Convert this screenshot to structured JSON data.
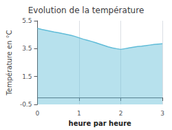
{
  "chart_data": {
    "type": "area",
    "title": "Evolution de la température",
    "xlabel": "heure par heure",
    "ylabel": "Température en °C",
    "x": [
      0.0,
      0.1,
      0.2,
      0.3,
      0.4,
      0.5,
      0.6,
      0.7,
      0.8,
      0.9,
      1.0,
      1.1,
      1.2,
      1.3,
      1.4,
      1.5,
      1.6,
      1.7,
      1.8,
      1.9,
      2.0,
      2.1,
      2.2,
      2.3,
      2.4,
      2.5,
      2.6,
      2.7,
      2.8,
      2.9,
      3.0
    ],
    "values": [
      4.95,
      4.88,
      4.82,
      4.76,
      4.7,
      4.65,
      4.58,
      4.52,
      4.46,
      4.38,
      4.28,
      4.18,
      4.1,
      4.02,
      3.93,
      3.83,
      3.73,
      3.63,
      3.56,
      3.5,
      3.45,
      3.5,
      3.55,
      3.6,
      3.65,
      3.68,
      3.72,
      3.76,
      3.8,
      3.83,
      3.85
    ],
    "color": "#60bcd8",
    "xlim": [
      0,
      3
    ],
    "xticks": [
      0,
      1,
      2,
      3
    ],
    "ylim": [
      -0.5,
      5.5
    ],
    "yticks": [
      -0.5,
      1.5,
      3.5,
      5.5
    ],
    "grid": "x"
  }
}
